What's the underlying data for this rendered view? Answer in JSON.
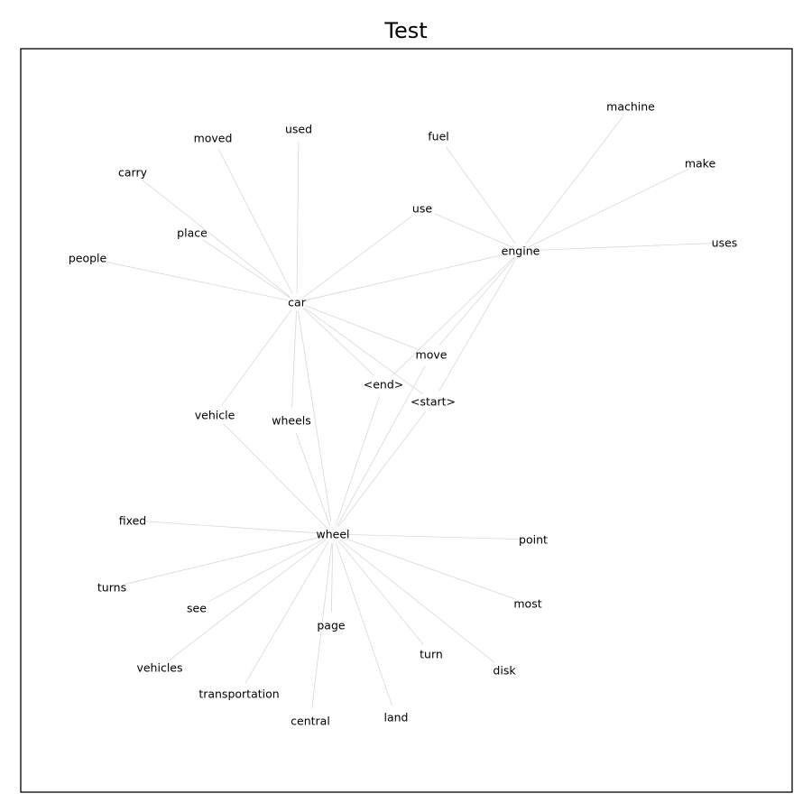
{
  "figure": {
    "title": "Test"
  },
  "graph": {
    "nodes": [
      {
        "id": "car",
        "label": "car"
      },
      {
        "id": "engine",
        "label": "engine"
      },
      {
        "id": "wheel",
        "label": "wheel"
      },
      {
        "id": "move",
        "label": "move"
      },
      {
        "id": "end",
        "label": "<end>"
      },
      {
        "id": "start",
        "label": "<start>"
      },
      {
        "id": "machine",
        "label": "machine"
      },
      {
        "id": "make",
        "label": "make"
      },
      {
        "id": "uses",
        "label": "uses"
      },
      {
        "id": "fuel",
        "label": "fuel"
      },
      {
        "id": "use",
        "label": "use"
      },
      {
        "id": "used",
        "label": "used"
      },
      {
        "id": "moved",
        "label": "moved"
      },
      {
        "id": "carry",
        "label": "carry"
      },
      {
        "id": "place",
        "label": "place"
      },
      {
        "id": "people",
        "label": "people"
      },
      {
        "id": "vehicle",
        "label": "vehicle"
      },
      {
        "id": "wheels",
        "label": "wheels"
      },
      {
        "id": "fixed",
        "label": "fixed"
      },
      {
        "id": "point",
        "label": "point"
      },
      {
        "id": "turns",
        "label": "turns"
      },
      {
        "id": "see",
        "label": "see"
      },
      {
        "id": "most",
        "label": "most"
      },
      {
        "id": "page",
        "label": "page"
      },
      {
        "id": "turn",
        "label": "turn"
      },
      {
        "id": "disk",
        "label": "disk"
      },
      {
        "id": "vehicles",
        "label": "vehicles"
      },
      {
        "id": "transportation",
        "label": "transportation"
      },
      {
        "id": "central",
        "label": "central"
      },
      {
        "id": "land",
        "label": "land"
      }
    ],
    "edges": [
      [
        "car",
        "engine"
      ],
      [
        "car",
        "wheel"
      ],
      [
        "car",
        "move"
      ],
      [
        "car",
        "end"
      ],
      [
        "car",
        "start"
      ],
      [
        "car",
        "use"
      ],
      [
        "car",
        "used"
      ],
      [
        "car",
        "moved"
      ],
      [
        "car",
        "carry"
      ],
      [
        "car",
        "place"
      ],
      [
        "car",
        "people"
      ],
      [
        "car",
        "vehicle"
      ],
      [
        "car",
        "wheels"
      ],
      [
        "engine",
        "machine"
      ],
      [
        "engine",
        "make"
      ],
      [
        "engine",
        "uses"
      ],
      [
        "engine",
        "fuel"
      ],
      [
        "engine",
        "use"
      ],
      [
        "engine",
        "move"
      ],
      [
        "engine",
        "end"
      ],
      [
        "engine",
        "start"
      ],
      [
        "wheel",
        "end"
      ],
      [
        "wheel",
        "start"
      ],
      [
        "wheel",
        "move"
      ],
      [
        "wheel",
        "vehicle"
      ],
      [
        "wheel",
        "wheels"
      ],
      [
        "wheel",
        "fixed"
      ],
      [
        "wheel",
        "point"
      ],
      [
        "wheel",
        "turns"
      ],
      [
        "wheel",
        "see"
      ],
      [
        "wheel",
        "most"
      ],
      [
        "wheel",
        "page"
      ],
      [
        "wheel",
        "turn"
      ],
      [
        "wheel",
        "disk"
      ],
      [
        "wheel",
        "vehicles"
      ],
      [
        "wheel",
        "transportation"
      ],
      [
        "wheel",
        "central"
      ],
      [
        "wheel",
        "land"
      ]
    ]
  }
}
